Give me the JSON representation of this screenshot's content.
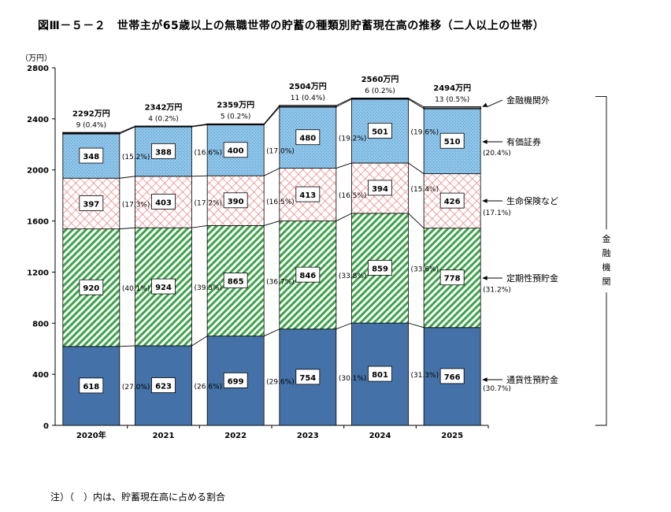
{
  "title": "図Ⅲ－５－２　世帯主が65歳以上の無職世帯の貯蓄の種類別貯蓄現在高の推移（二人以上の世帯）",
  "note": "注）（　）内は、貯蓄現在高に占める割合",
  "chart_data": {
    "type": "bar",
    "stacked": true,
    "categories": [
      "2020年",
      "2021",
      "2022",
      "2023",
      "2024",
      "2025"
    ],
    "y_unit": "（万円）",
    "ylim": [
      0,
      2800
    ],
    "yticks": [
      0,
      400,
      800,
      1200,
      1600,
      2000,
      2400,
      2800
    ],
    "totals": [
      "2292万円",
      "2342万円",
      "2359万円",
      "2504万円",
      "2560万円",
      "2494万円"
    ],
    "series": [
      {
        "name": "通貨性預貯金",
        "color": "#4472a8",
        "pattern": "solid",
        "values": [
          618,
          623,
          699,
          754,
          801,
          766
        ],
        "pct": [
          "(27.0%)",
          "(26.6%)",
          "(29.6%)",
          "(30.1%)",
          "(31.3%)",
          "(30.7%)"
        ]
      },
      {
        "name": "定期性預貯金",
        "color": "#3aa447",
        "pattern": "diagonal",
        "values": [
          920,
          924,
          865,
          846,
          859,
          778
        ],
        "pct": [
          "(40.1%)",
          "(39.5%)",
          "(36.7%)",
          "(33.8%)",
          "(33.6%)",
          "(31.2%)"
        ]
      },
      {
        "name": "生命保険など",
        "color": "#e87070",
        "pattern": "crosshatch",
        "values": [
          397,
          403,
          390,
          413,
          394,
          426
        ],
        "pct": [
          "(17.3%)",
          "(17.2%)",
          "(16.5%)",
          "(16.5%)",
          "(15.4%)",
          "(17.1%)"
        ]
      },
      {
        "name": "有価証券",
        "color": "#8fc4e8",
        "pattern": "dots",
        "values": [
          348,
          388,
          400,
          480,
          501,
          510
        ],
        "pct": [
          "(15.2%)",
          "(16.6%)",
          "(17.0%)",
          "(19.2%)",
          "(19.6%)",
          "(20.4%)"
        ]
      },
      {
        "name": "金融機関外",
        "color": "#ffffff",
        "pattern": "none",
        "values": [
          9,
          4,
          5,
          11,
          6,
          13
        ],
        "pct": [
          "(0.4%)",
          "(0.2%)",
          "(0.2%)",
          "(0.4%)",
          "(0.2%)",
          "(0.5%)"
        ]
      }
    ],
    "bracket_label": "金融機関",
    "grid": false,
    "legend": "right, arrow callouts"
  }
}
